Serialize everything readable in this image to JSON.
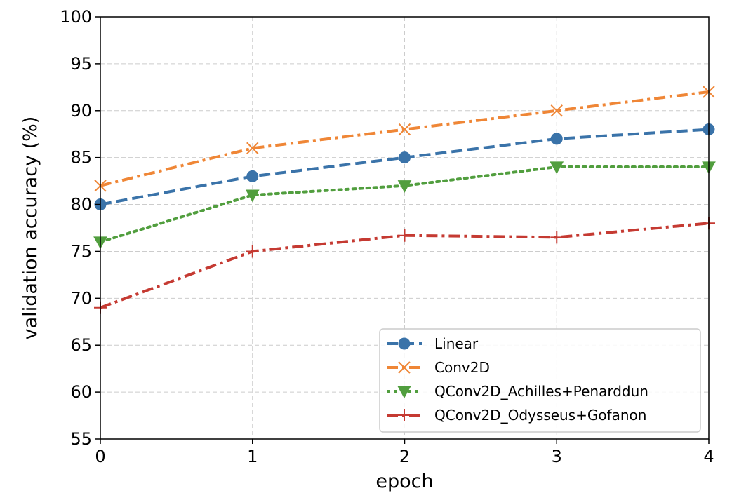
{
  "chart_data": {
    "type": "line",
    "title": "",
    "xlabel": "epoch",
    "ylabel": "validation accuracy (%)",
    "x": [
      0,
      1,
      2,
      3,
      4
    ],
    "xlim": [
      0,
      4
    ],
    "ylim": [
      55,
      100
    ],
    "xticks": [
      "0",
      "1",
      "2",
      "3",
      "4"
    ],
    "yticks": [
      "55",
      "60",
      "65",
      "70",
      "75",
      "80",
      "85",
      "90",
      "95",
      "100"
    ],
    "grid": true,
    "legend_position": "lower-right",
    "series": [
      {
        "name": "Linear",
        "values": [
          80,
          83,
          85,
          87,
          88
        ],
        "color": "#3a73a9",
        "dash": "dashed",
        "marker": "circle"
      },
      {
        "name": "Conv2D",
        "values": [
          82,
          86,
          88,
          90,
          92
        ],
        "color": "#ef8636",
        "dash": "dashdot",
        "marker": "x"
      },
      {
        "name": "QConv2D_Achilles+Penarddun",
        "values": [
          76,
          81,
          82,
          84,
          84
        ],
        "color": "#519e3e",
        "dash": "dotted",
        "marker": "triangle-down"
      },
      {
        "name": "QConv2D_Odysseus+Gofanon",
        "values": [
          69,
          75,
          76.7,
          76.5,
          78
        ],
        "color": "#c53a32",
        "dash": "dashdot",
        "marker": "plus"
      }
    ]
  }
}
